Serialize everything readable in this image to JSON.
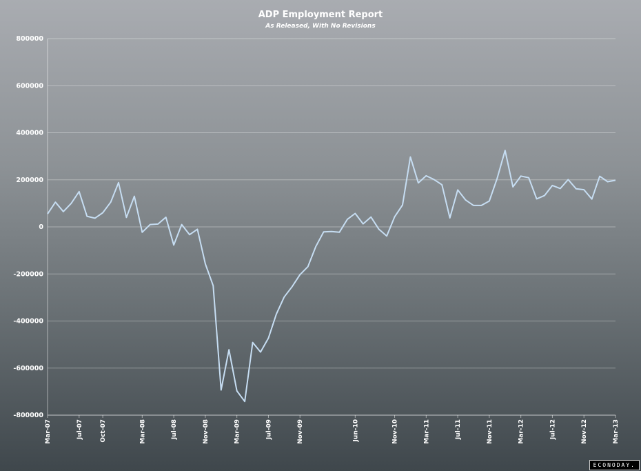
{
  "chart_data": {
    "type": "line",
    "title": "ADP Employment Report",
    "subtitle": "As Released, With No Revisions",
    "xlabel": "",
    "ylabel": "",
    "ylim": [
      -800000,
      800000
    ],
    "y_ticks": [
      800000,
      600000,
      400000,
      200000,
      0,
      -200000,
      -400000,
      -600000,
      -800000
    ],
    "x_start": "Mar-07",
    "x_tick_labels": [
      "Mar-07",
      "Jul-07",
      "Oct-07",
      "Mar-08",
      "Jul-08",
      "Nov-08",
      "Mar-09",
      "Jul-09",
      "Nov-09",
      "Jun-10",
      "Nov-10",
      "Mar-11",
      "Jul-11",
      "Nov-11",
      "Mar-12",
      "Jul-12",
      "Nov-12",
      "Mar-13"
    ],
    "grid": true,
    "legend": "none",
    "series": [
      {
        "color": "#c6ddf2",
        "values": [
          55000,
          105000,
          65000,
          100000,
          150000,
          45000,
          37000,
          60000,
          105000,
          188000,
          40000,
          130000,
          -23000,
          10000,
          12000,
          41000,
          -77000,
          10000,
          -33000,
          -10000,
          -157000,
          -250000,
          -693000,
          -522000,
          -697000,
          -742000,
          -491000,
          -532000,
          -473000,
          -371000,
          -298000,
          -254000,
          -203000,
          -169000,
          -84000,
          -21000,
          -20000,
          -23000,
          32000,
          57000,
          13000,
          42000,
          -10000,
          -39000,
          43000,
          93000,
          297000,
          187000,
          217000,
          201000,
          179000,
          38000,
          157000,
          114000,
          91000,
          91000,
          110000,
          206000,
          325000,
          170000,
          216000,
          209000,
          119000,
          133000,
          176000,
          163000,
          201000,
          162000,
          158000,
          118000,
          215000,
          192000,
          198000
        ]
      }
    ]
  },
  "watermark": "ECONODAY."
}
